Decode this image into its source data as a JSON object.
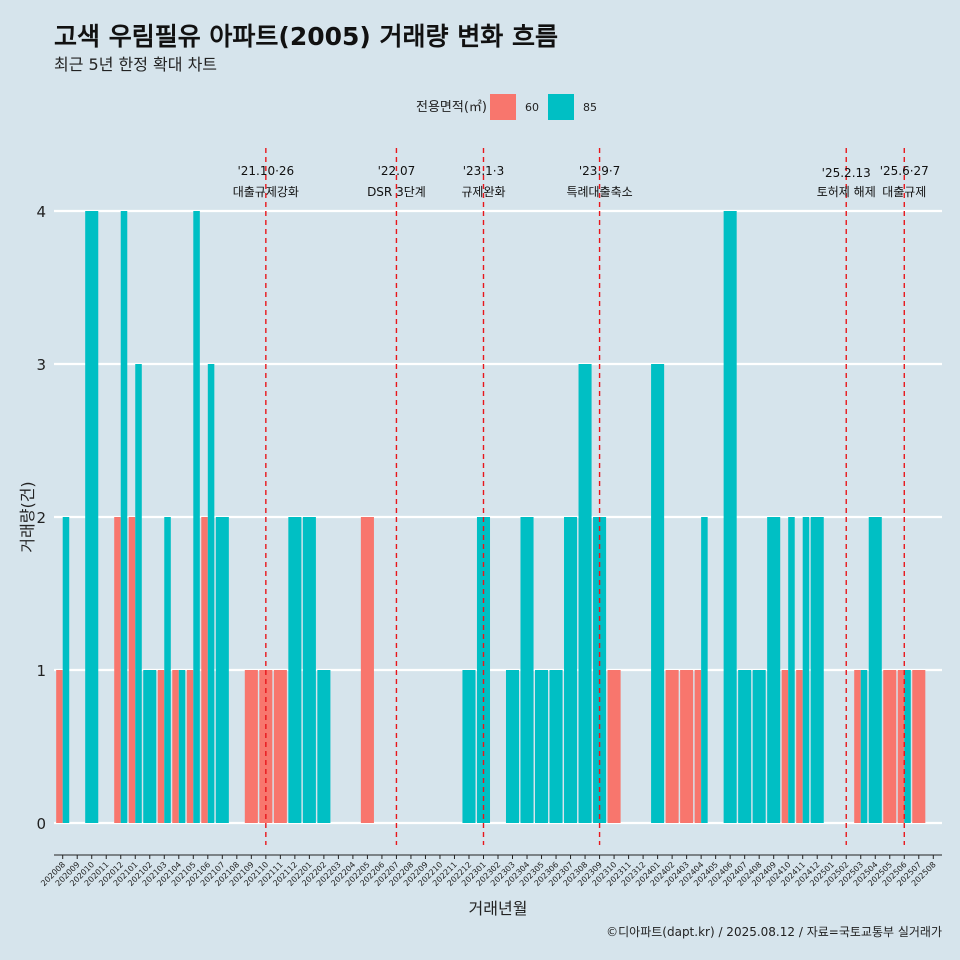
{
  "chart_data": {
    "type": "bar",
    "title": "고색 우림필유 아파트(2005) 거래량 변화 흐름",
    "subtitle": "최근 5년 한정 확대 차트",
    "xlabel": "거래년월",
    "ylabel": "거래량(건)",
    "legend_title": "전용면적(㎡)",
    "legend_position": "top",
    "ylim": [
      0,
      4
    ],
    "yticks": [
      0,
      1,
      2,
      3,
      4
    ],
    "categories": [
      "202008",
      "202009",
      "202010",
      "202011",
      "202012",
      "202101",
      "202102",
      "202103",
      "202104",
      "202105",
      "202106",
      "202107",
      "202108",
      "202109",
      "202110",
      "202111",
      "202112",
      "202201",
      "202202",
      "202203",
      "202204",
      "202205",
      "202206",
      "202207",
      "202208",
      "202209",
      "202210",
      "202211",
      "202212",
      "202301",
      "202302",
      "202303",
      "202304",
      "202305",
      "202306",
      "202307",
      "202308",
      "202309",
      "202310",
      "202311",
      "202312",
      "202401",
      "202402",
      "202403",
      "202404",
      "202405",
      "202406",
      "202407",
      "202408",
      "202409",
      "202410",
      "202411",
      "202412",
      "202501",
      "202502",
      "202503",
      "202504",
      "202505",
      "202506",
      "202507",
      "202508"
    ],
    "series": [
      {
        "name": "60",
        "color": "#f8766d",
        "values": [
          1,
          0,
          0,
          0,
          2,
          2,
          0,
          1,
          1,
          1,
          2,
          0,
          0,
          1,
          1,
          1,
          0,
          0,
          0,
          0,
          0,
          2,
          0,
          0,
          0,
          0,
          0,
          0,
          0,
          0,
          0,
          0,
          0,
          0,
          0,
          0,
          0,
          0,
          1,
          0,
          0,
          0,
          1,
          1,
          1,
          0,
          0,
          0,
          0,
          0,
          1,
          1,
          0,
          0,
          0,
          1,
          0,
          1,
          1,
          1,
          0
        ]
      },
      {
        "name": "85",
        "color": "#00bfc4",
        "values": [
          2,
          0,
          4,
          0,
          4,
          3,
          1,
          2,
          1,
          4,
          3,
          2,
          0,
          0,
          0,
          0,
          2,
          2,
          1,
          0,
          0,
          0,
          0,
          0,
          0,
          0,
          0,
          0,
          1,
          2,
          0,
          1,
          2,
          1,
          1,
          2,
          3,
          2,
          0,
          0,
          0,
          3,
          0,
          0,
          2,
          0,
          4,
          1,
          1,
          2,
          2,
          2,
          2,
          0,
          0,
          1,
          2,
          0,
          1,
          0,
          0
        ]
      }
    ],
    "events": [
      {
        "month": "202110",
        "date": "'21.10·26",
        "label": "대출규제강화"
      },
      {
        "month": "202207",
        "date": "'22.07",
        "label": "DSR 3단계"
      },
      {
        "month": "202301",
        "date": "'23.1·3",
        "label": "규제완화"
      },
      {
        "month": "202309",
        "date": "'23.9·7",
        "label": "특례대출축소"
      },
      {
        "month": "202502",
        "date": "'25.2.13",
        "label": "토허제 해제"
      },
      {
        "month": "202506",
        "date": "'25.6·27",
        "label": "대출규제"
      }
    ],
    "grid": "horizontal",
    "caption": "©디아파트(dapt.kr) / 2025.08.12 / 자료=국토교통부 실거래가"
  }
}
